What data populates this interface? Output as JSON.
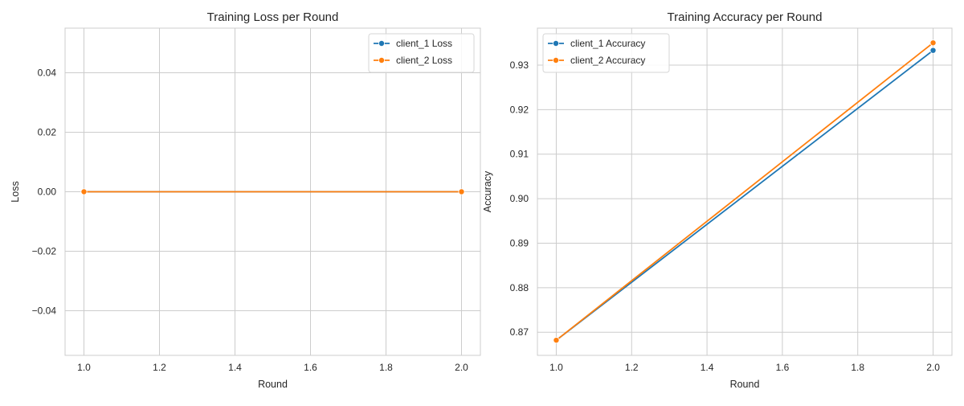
{
  "chart_data": [
    {
      "type": "line",
      "title": "Training Loss per Round",
      "xlabel": "Round",
      "ylabel": "Loss",
      "xlim": [
        0.95,
        2.05
      ],
      "ylim": [
        -0.055,
        0.055
      ],
      "xticks": [
        1.0,
        1.2,
        1.4,
        1.6,
        1.8,
        2.0
      ],
      "xtick_labels": [
        "1.0",
        "1.2",
        "1.4",
        "1.6",
        "1.8",
        "2.0"
      ],
      "yticks": [
        -0.04,
        -0.02,
        0.0,
        0.02,
        0.04
      ],
      "ytick_labels": [
        "−0.04",
        "−0.02",
        "0.00",
        "0.02",
        "0.04"
      ],
      "grid": true,
      "legend_position": "top-right",
      "x": [
        1.0,
        2.0
      ],
      "series": [
        {
          "name": "client_1 Loss",
          "color": "#1f77b4",
          "values": [
            0.0,
            0.0
          ]
        },
        {
          "name": "client_2 Loss",
          "color": "#ff7f0e",
          "values": [
            0.0,
            0.0
          ]
        }
      ]
    },
    {
      "type": "line",
      "title": "Training Accuracy per Round",
      "xlabel": "Round",
      "ylabel": "Accuracy",
      "xlim": [
        0.95,
        2.05
      ],
      "ylim": [
        0.8648,
        0.9383
      ],
      "xticks": [
        1.0,
        1.2,
        1.4,
        1.6,
        1.8,
        2.0
      ],
      "xtick_labels": [
        "1.0",
        "1.2",
        "1.4",
        "1.6",
        "1.8",
        "2.0"
      ],
      "yticks": [
        0.87,
        0.88,
        0.89,
        0.9,
        0.91,
        0.92,
        0.93
      ],
      "ytick_labels": [
        "0.87",
        "0.88",
        "0.89",
        "0.90",
        "0.91",
        "0.92",
        "0.93"
      ],
      "grid": true,
      "legend_position": "top-left",
      "x": [
        1.0,
        2.0
      ],
      "series": [
        {
          "name": "client_1 Accuracy",
          "color": "#1f77b4",
          "values": [
            0.8682,
            0.9333
          ]
        },
        {
          "name": "client_2 Accuracy",
          "color": "#ff7f0e",
          "values": [
            0.8682,
            0.935
          ]
        }
      ]
    }
  ]
}
